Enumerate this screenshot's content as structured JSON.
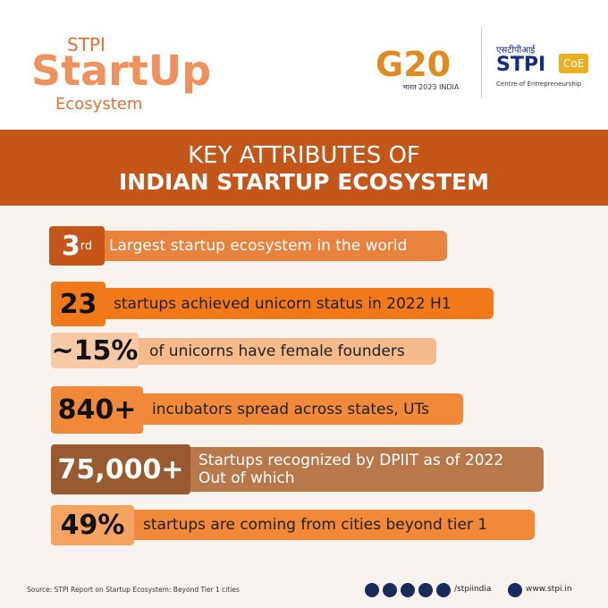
{
  "header": {
    "brand_top": "STPI",
    "brand_main": "StartUp",
    "brand_sub": "Ecosystem",
    "g20": "G20",
    "g20_sub": "भारत 2023 INDIA",
    "stpi_hindi": "एसटीपीआई",
    "stpi": "STPI",
    "coe": "CoE",
    "coe_caption": "Centre of Entrepreneurship"
  },
  "banner": {
    "line1": "KEY ATTRIBUTES OF",
    "line2": "INDIAN STARTUP ECOSYSTEM"
  },
  "items": [
    {
      "figure": "3",
      "sup": "rd",
      "text": "Largest startup ecosystem in the world"
    },
    {
      "figure": "23",
      "text": "startups achieved unicorn status in 2022 H1"
    },
    {
      "figure": "~15%",
      "text": "of unicorns have female founders"
    },
    {
      "figure": "840+",
      "text": "incubators spread across states, UTs"
    },
    {
      "figure": "75,000+",
      "text": "Startups recognized by DPIIT as of 2022",
      "text2": "Out of which"
    },
    {
      "figure": "49%",
      "text": "startups are coming from cities beyond tier 1"
    }
  ],
  "footer": {
    "source": "Source: STPI Report on Startup Ecosystem: Beyond Tier 1 cities",
    "handle": "/stpiindia",
    "website": "www.stpi.in"
  }
}
